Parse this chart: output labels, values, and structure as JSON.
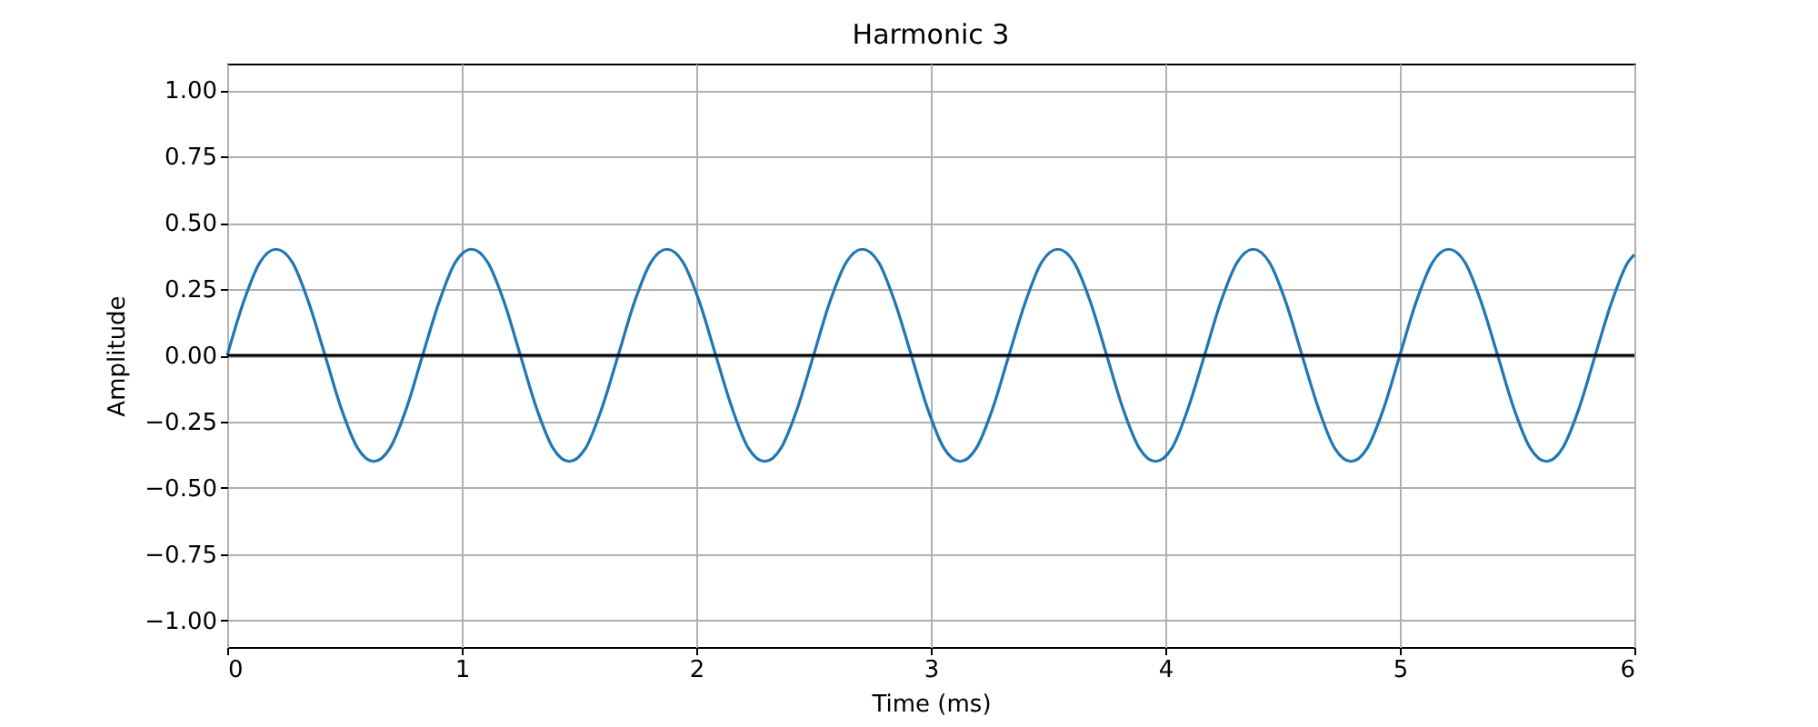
{
  "chart_data": {
    "type": "line",
    "title": "Harmonic 3",
    "xlabel": "Time (ms)",
    "ylabel": "Amplitude",
    "xlim": [
      0,
      6
    ],
    "xticks": [
      0,
      1,
      2,
      3,
      4,
      5,
      6
    ],
    "ylim": [
      -1.1,
      1.1
    ],
    "yticks": [
      {
        "value": -1,
        "label": "−1.00"
      },
      {
        "value": -0.75,
        "label": "−0.75"
      },
      {
        "value": -0.5,
        "label": "−0.50"
      },
      {
        "value": -0.25,
        "label": "−0.25"
      },
      {
        "value": 0,
        "label": "0.00"
      },
      {
        "value": 0.25,
        "label": "0.25"
      },
      {
        "value": 0.5,
        "label": "0.50"
      },
      {
        "value": 0.75,
        "label": "0.75"
      },
      {
        "value": 1,
        "label": "1.00"
      }
    ],
    "grid": true,
    "legend": false,
    "ref_lines": [
      {
        "axis": "y",
        "value": 0,
        "color": "#000000"
      }
    ],
    "series": [
      {
        "color": "#1f77b4",
        "x": [
          0,
          0.069,
          0.139,
          0.208,
          0.278,
          0.347,
          0.417,
          0.486,
          0.556,
          0.625,
          0.694,
          0.764,
          0.833,
          0.903,
          0.972,
          1.042,
          1.111,
          1.181,
          1.25,
          1.319,
          1.389,
          1.458,
          1.528,
          1.597,
          1.667,
          1.736,
          1.806,
          1.875,
          1.944,
          2.014,
          2.083,
          2.153,
          2.222,
          2.292,
          2.361,
          2.431,
          2.5,
          2.569,
          2.639,
          2.708,
          2.778,
          2.847,
          2.917,
          2.986,
          3.056,
          3.125,
          3.194,
          3.264,
          3.333,
          3.403,
          3.472,
          3.542,
          3.611,
          3.681,
          3.75,
          3.819,
          3.889,
          3.958,
          4.028,
          4.097,
          4.167,
          4.236,
          4.306,
          4.375,
          4.444,
          4.514,
          4.583,
          4.653,
          4.722,
          4.792,
          4.861,
          4.931,
          5,
          5.069,
          5.139,
          5.208,
          5.278,
          5.347,
          5.417,
          5.486,
          5.556,
          5.625,
          5.694,
          5.764,
          5.833,
          5.903,
          5.972,
          6
        ],
        "values": [
          0,
          0.2,
          0.35,
          0.4,
          0.35,
          0.2,
          0,
          -0.2,
          -0.35,
          -0.4,
          -0.35,
          -0.2,
          0,
          0.2,
          0.35,
          0.4,
          0.35,
          0.2,
          0,
          -0.2,
          -0.35,
          -0.4,
          -0.35,
          -0.2,
          0,
          0.2,
          0.35,
          0.4,
          0.35,
          0.2,
          0,
          -0.2,
          -0.35,
          -0.4,
          -0.35,
          -0.2,
          0,
          0.2,
          0.35,
          0.4,
          0.35,
          0.2,
          0,
          -0.2,
          -0.35,
          -0.4,
          -0.35,
          -0.2,
          0,
          0.2,
          0.35,
          0.4,
          0.35,
          0.2,
          0,
          -0.2,
          -0.35,
          -0.4,
          -0.35,
          -0.2,
          0,
          0.2,
          0.35,
          0.4,
          0.35,
          0.2,
          0,
          -0.2,
          -0.35,
          -0.4,
          -0.35,
          -0.2,
          0,
          0.2,
          0.35,
          0.4,
          0.35,
          0.2,
          0,
          -0.2,
          -0.35,
          -0.4,
          -0.35,
          -0.2,
          0,
          0.2,
          0.35,
          0.38
        ]
      }
    ]
  }
}
